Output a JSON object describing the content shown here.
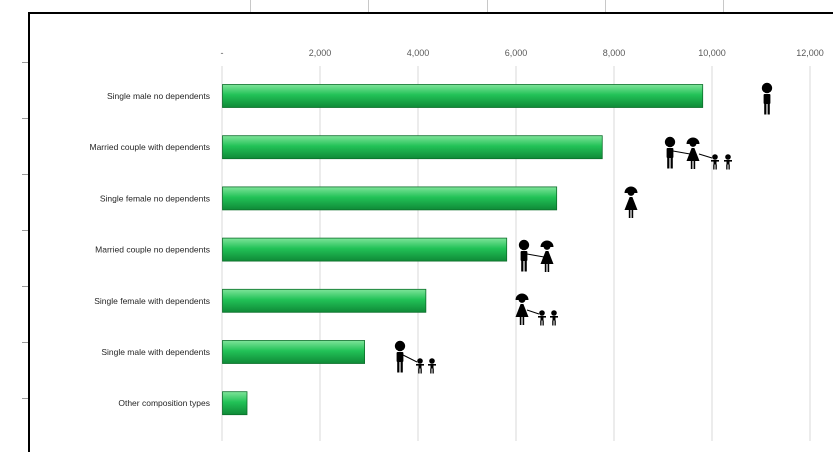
{
  "chart_data": {
    "type": "bar",
    "orientation": "horizontal",
    "categories": [
      "Single male no dependents",
      "Married couple with dependents",
      "Single female no dependents",
      "Married couple no dependents",
      "Single female with dependents",
      "Single male with dependents",
      "Other composition types"
    ],
    "values": [
      9800,
      7750,
      6820,
      5800,
      4150,
      2900,
      500
    ],
    "xlim": [
      0,
      12000
    ],
    "xticks": [
      0,
      2000,
      4000,
      6000,
      8000,
      10000,
      12000
    ],
    "xtick_labels": [
      "-",
      "2,000",
      "4,000",
      "6,000",
      "8,000",
      "10,000",
      "12,000"
    ],
    "grid": "vertical",
    "bar_color": "#1fbf4f",
    "bar_edge_color": "#0c6e2a",
    "icons": [
      "single-male-icon",
      "couple-with-children-icon",
      "single-female-icon",
      "couple-icon",
      "female-with-children-icon",
      "male-with-children-icon",
      ""
    ]
  }
}
